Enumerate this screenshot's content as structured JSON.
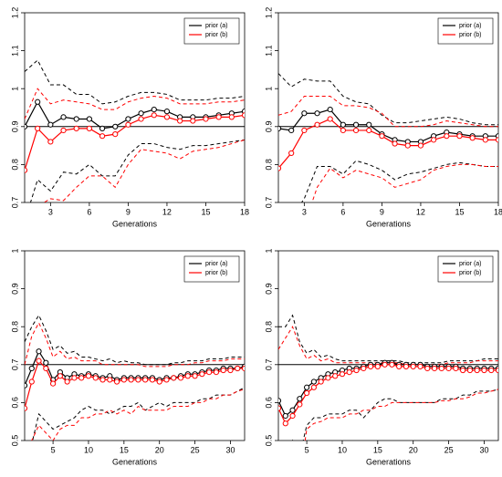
{
  "chart_data": [
    {
      "type": "line",
      "x_label": "Generations",
      "legend": "top-right",
      "x": [
        1,
        2,
        3,
        4,
        5,
        6,
        7,
        8,
        9,
        10,
        11,
        12,
        13,
        14,
        15,
        16,
        17,
        18
      ],
      "xlim": [
        1,
        18
      ],
      "xticks": [
        3,
        6,
        9,
        12,
        15,
        18
      ],
      "ylim": [
        0.7,
        1.2
      ],
      "yticks": [
        0.7,
        0.8,
        0.9,
        1.0,
        1.1,
        1.2
      ],
      "hline": 0.9,
      "series": [
        {
          "name": "prior (a)",
          "color": "#000000",
          "values": [
            0.9,
            0.965,
            0.905,
            0.925,
            0.92,
            0.92,
            0.895,
            0.9,
            0.92,
            0.935,
            0.945,
            0.94,
            0.925,
            0.925,
            0.925,
            0.93,
            0.935,
            0.94
          ],
          "upper": [
            1.045,
            1.075,
            1.01,
            1.01,
            0.985,
            0.985,
            0.96,
            0.965,
            0.98,
            0.99,
            0.99,
            0.985,
            0.97,
            0.97,
            0.97,
            0.975,
            0.975,
            0.98
          ],
          "lower": [
            0.65,
            0.76,
            0.73,
            0.78,
            0.775,
            0.8,
            0.77,
            0.77,
            0.825,
            0.855,
            0.855,
            0.845,
            0.84,
            0.85,
            0.85,
            0.855,
            0.86,
            0.865
          ]
        },
        {
          "name": "prior (b)",
          "color": "#ff0000",
          "values": [
            0.785,
            0.895,
            0.86,
            0.89,
            0.895,
            0.895,
            0.875,
            0.88,
            0.905,
            0.92,
            0.93,
            0.925,
            0.915,
            0.915,
            0.92,
            0.925,
            0.925,
            0.93
          ],
          "upper": [
            0.92,
            1.0,
            0.96,
            0.97,
            0.965,
            0.96,
            0.945,
            0.945,
            0.965,
            0.975,
            0.98,
            0.975,
            0.96,
            0.96,
            0.96,
            0.965,
            0.965,
            0.97
          ],
          "lower": [
            0.6,
            0.69,
            0.71,
            0.705,
            0.74,
            0.77,
            0.77,
            0.74,
            0.8,
            0.84,
            0.835,
            0.83,
            0.815,
            0.835,
            0.84,
            0.845,
            0.855,
            0.865
          ]
        }
      ]
    },
    {
      "type": "line",
      "x_label": "Generations",
      "legend": "top-right",
      "x": [
        1,
        2,
        3,
        4,
        5,
        6,
        7,
        8,
        9,
        10,
        11,
        12,
        13,
        14,
        15,
        16,
        17,
        18
      ],
      "xlim": [
        1,
        18
      ],
      "xticks": [
        3,
        6,
        9,
        12,
        15,
        18
      ],
      "ylim": [
        0.7,
        1.2
      ],
      "yticks": [
        0.7,
        0.8,
        0.9,
        1.0,
        1.1,
        1.2
      ],
      "hline": 0.9,
      "series": [
        {
          "name": "prior (a)",
          "color": "#000000",
          "values": [
            0.895,
            0.89,
            0.935,
            0.935,
            0.945,
            0.905,
            0.905,
            0.905,
            0.88,
            0.865,
            0.86,
            0.86,
            0.875,
            0.885,
            0.88,
            0.875,
            0.875,
            0.875
          ],
          "upper": [
            1.04,
            1.005,
            1.025,
            1.02,
            1.02,
            0.98,
            0.965,
            0.96,
            0.93,
            0.91,
            0.91,
            0.915,
            0.92,
            0.925,
            0.92,
            0.91,
            0.905,
            0.905
          ],
          "lower": [
            0.64,
            0.66,
            0.71,
            0.795,
            0.795,
            0.775,
            0.81,
            0.8,
            0.785,
            0.76,
            0.775,
            0.78,
            0.79,
            0.8,
            0.805,
            0.8,
            0.795,
            0.795
          ]
        },
        {
          "name": "prior (b)",
          "color": "#ff0000",
          "values": [
            0.79,
            0.83,
            0.89,
            0.905,
            0.92,
            0.89,
            0.89,
            0.89,
            0.875,
            0.855,
            0.85,
            0.85,
            0.865,
            0.875,
            0.875,
            0.87,
            0.865,
            0.865
          ],
          "upper": [
            0.93,
            0.94,
            0.98,
            0.98,
            0.98,
            0.955,
            0.955,
            0.95,
            0.935,
            0.9,
            0.9,
            0.9,
            0.905,
            0.915,
            0.91,
            0.905,
            0.9,
            0.9
          ],
          "lower": [
            0.57,
            0.6,
            0.64,
            0.74,
            0.79,
            0.765,
            0.785,
            0.775,
            0.765,
            0.74,
            0.75,
            0.76,
            0.785,
            0.795,
            0.8,
            0.8,
            0.795,
            0.795
          ]
        }
      ]
    },
    {
      "type": "line",
      "x_label": "Generations",
      "legend": "top-right",
      "x": [
        1,
        2,
        3,
        4,
        5,
        6,
        7,
        8,
        9,
        10,
        11,
        12,
        13,
        14,
        15,
        16,
        17,
        18,
        19,
        20,
        21,
        22,
        23,
        24,
        25,
        26,
        27,
        28,
        29,
        30,
        31,
        32
      ],
      "xlim": [
        1,
        32
      ],
      "xticks": [
        5,
        10,
        15,
        20,
        25,
        30
      ],
      "ylim": [
        0.5,
        1.0
      ],
      "yticks": [
        0.5,
        0.6,
        0.7,
        0.8,
        0.9,
        1.0
      ],
      "hline": 0.7,
      "series": [
        {
          "name": "prior (a)",
          "color": "#000000",
          "values": [
            0.645,
            0.69,
            0.735,
            0.705,
            0.66,
            0.68,
            0.665,
            0.675,
            0.67,
            0.675,
            0.67,
            0.665,
            0.67,
            0.66,
            0.665,
            0.665,
            0.665,
            0.665,
            0.665,
            0.66,
            0.665,
            0.665,
            0.67,
            0.675,
            0.675,
            0.68,
            0.685,
            0.685,
            0.69,
            0.69,
            0.69,
            0.695
          ],
          "upper": [
            0.76,
            0.8,
            0.83,
            0.79,
            0.74,
            0.75,
            0.73,
            0.735,
            0.72,
            0.72,
            0.715,
            0.71,
            0.715,
            0.705,
            0.71,
            0.705,
            0.705,
            0.7,
            0.7,
            0.7,
            0.7,
            0.705,
            0.705,
            0.71,
            0.71,
            0.71,
            0.715,
            0.715,
            0.715,
            0.72,
            0.72,
            0.72
          ],
          "lower": [
            0.5,
            0.49,
            0.57,
            0.55,
            0.53,
            0.54,
            0.55,
            0.56,
            0.58,
            0.59,
            0.58,
            0.58,
            0.57,
            0.58,
            0.59,
            0.59,
            0.6,
            0.58,
            0.59,
            0.6,
            0.59,
            0.6,
            0.6,
            0.6,
            0.6,
            0.61,
            0.61,
            0.62,
            0.62,
            0.62,
            0.63,
            0.64
          ]
        },
        {
          "name": "prior (b)",
          "color": "#ff0000",
          "values": [
            0.585,
            0.655,
            0.71,
            0.69,
            0.65,
            0.67,
            0.655,
            0.665,
            0.665,
            0.67,
            0.665,
            0.66,
            0.66,
            0.655,
            0.66,
            0.66,
            0.66,
            0.66,
            0.66,
            0.655,
            0.66,
            0.665,
            0.665,
            0.67,
            0.67,
            0.675,
            0.68,
            0.68,
            0.685,
            0.685,
            0.69,
            0.69
          ],
          "upper": [
            0.7,
            0.775,
            0.81,
            0.77,
            0.72,
            0.735,
            0.715,
            0.72,
            0.71,
            0.71,
            0.71,
            0.7,
            0.7,
            0.7,
            0.7,
            0.7,
            0.7,
            0.695,
            0.695,
            0.695,
            0.695,
            0.7,
            0.7,
            0.7,
            0.705,
            0.705,
            0.71,
            0.71,
            0.71,
            0.715,
            0.715,
            0.715
          ],
          "lower": [
            0.45,
            0.5,
            0.54,
            0.52,
            0.5,
            0.53,
            0.54,
            0.54,
            0.56,
            0.56,
            0.57,
            0.57,
            0.58,
            0.57,
            0.58,
            0.57,
            0.59,
            0.58,
            0.58,
            0.58,
            0.58,
            0.59,
            0.59,
            0.59,
            0.6,
            0.6,
            0.61,
            0.61,
            0.62,
            0.62,
            0.63,
            0.635
          ]
        }
      ]
    },
    {
      "type": "line",
      "x_label": "Generations",
      "legend": "top-right",
      "x": [
        1,
        2,
        3,
        4,
        5,
        6,
        7,
        8,
        9,
        10,
        11,
        12,
        13,
        14,
        15,
        16,
        17,
        18,
        19,
        20,
        21,
        22,
        23,
        24,
        25,
        26,
        27,
        28,
        29,
        30,
        31,
        32
      ],
      "xlim": [
        1,
        32
      ],
      "xticks": [
        5,
        10,
        15,
        20,
        25,
        30
      ],
      "ylim": [
        0.5,
        1.0
      ],
      "yticks": [
        0.5,
        0.6,
        0.7,
        0.8,
        0.9,
        1.0
      ],
      "hline": 0.7,
      "series": [
        {
          "name": "prior (a)",
          "color": "#000000",
          "values": [
            0.605,
            0.565,
            0.58,
            0.61,
            0.64,
            0.655,
            0.665,
            0.675,
            0.68,
            0.685,
            0.69,
            0.69,
            0.695,
            0.7,
            0.7,
            0.705,
            0.705,
            0.7,
            0.7,
            0.7,
            0.7,
            0.695,
            0.695,
            0.695,
            0.695,
            0.695,
            0.69,
            0.69,
            0.69,
            0.69,
            0.69,
            0.69
          ],
          "upper": [
            0.8,
            0.8,
            0.83,
            0.76,
            0.73,
            0.74,
            0.72,
            0.725,
            0.715,
            0.71,
            0.71,
            0.71,
            0.71,
            0.71,
            0.71,
            0.71,
            0.71,
            0.71,
            0.705,
            0.705,
            0.705,
            0.705,
            0.705,
            0.705,
            0.71,
            0.71,
            0.71,
            0.71,
            0.71,
            0.715,
            0.715,
            0.715
          ],
          "lower": [
            0.48,
            0.44,
            0.5,
            0.46,
            0.54,
            0.56,
            0.56,
            0.57,
            0.57,
            0.57,
            0.58,
            0.58,
            0.56,
            0.58,
            0.6,
            0.61,
            0.61,
            0.6,
            0.6,
            0.6,
            0.6,
            0.6,
            0.6,
            0.61,
            0.61,
            0.61,
            0.62,
            0.62,
            0.63,
            0.63,
            0.63,
            0.635
          ]
        },
        {
          "name": "prior (b)",
          "color": "#ff0000",
          "values": [
            0.585,
            0.545,
            0.565,
            0.595,
            0.625,
            0.64,
            0.655,
            0.665,
            0.67,
            0.675,
            0.68,
            0.685,
            0.69,
            0.695,
            0.695,
            0.7,
            0.7,
            0.695,
            0.695,
            0.695,
            0.695,
            0.69,
            0.69,
            0.69,
            0.69,
            0.69,
            0.685,
            0.685,
            0.685,
            0.685,
            0.685,
            0.685
          ],
          "upper": [
            0.74,
            0.77,
            0.8,
            0.75,
            0.715,
            0.725,
            0.71,
            0.715,
            0.705,
            0.705,
            0.705,
            0.705,
            0.705,
            0.705,
            0.705,
            0.705,
            0.705,
            0.705,
            0.7,
            0.7,
            0.7,
            0.7,
            0.7,
            0.7,
            0.705,
            0.705,
            0.705,
            0.705,
            0.71,
            0.71,
            0.71,
            0.71
          ],
          "lower": [
            0.42,
            0.44,
            0.47,
            0.4,
            0.53,
            0.545,
            0.55,
            0.56,
            0.56,
            0.56,
            0.57,
            0.57,
            0.58,
            0.58,
            0.59,
            0.59,
            0.6,
            0.6,
            0.6,
            0.6,
            0.6,
            0.6,
            0.6,
            0.605,
            0.605,
            0.61,
            0.61,
            0.615,
            0.625,
            0.625,
            0.63,
            0.635
          ]
        }
      ]
    }
  ]
}
